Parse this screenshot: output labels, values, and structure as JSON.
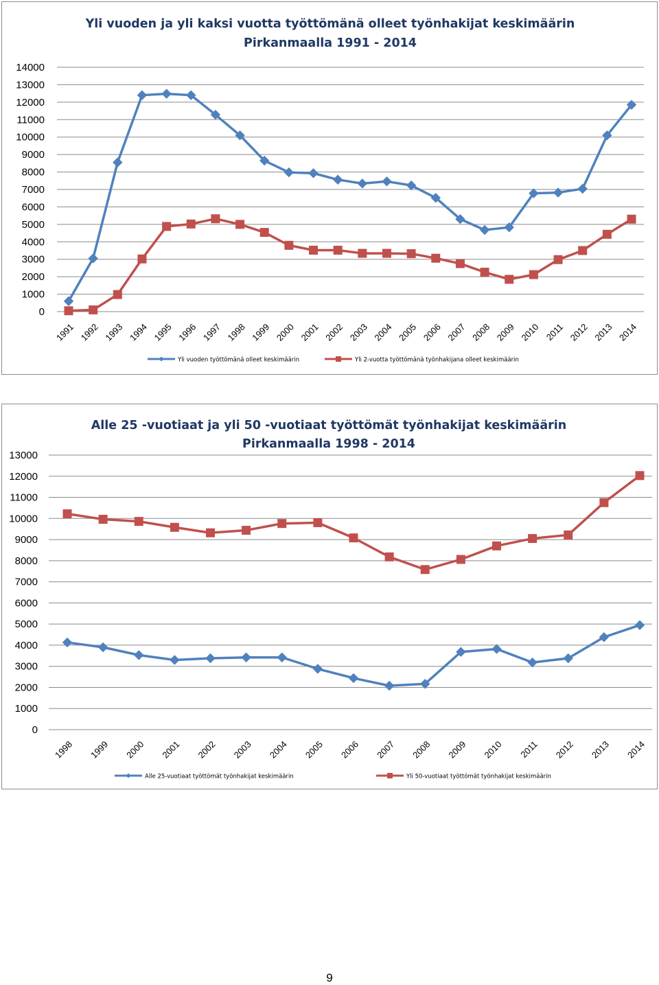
{
  "chart_data": [
    {
      "type": "line",
      "title_lines": [
        "Yli vuoden ja yli kaksi vuotta työttömänä olleet työnhakijat keskimäärin",
        "Pirkanmaalla 1991 - 2014"
      ],
      "categories": [
        "1991",
        "1992",
        "1993",
        "1994",
        "1995",
        "1996",
        "1997",
        "1998",
        "1999",
        "2000",
        "2001",
        "2002",
        "2003",
        "2004",
        "2005",
        "2006",
        "2007",
        "2008",
        "2009",
        "2010",
        "2011",
        "2012",
        "2013",
        "2014"
      ],
      "ylim": [
        0,
        14000
      ],
      "yticks": [
        "0",
        "1000",
        "2000",
        "3000",
        "4000",
        "5000",
        "6000",
        "7000",
        "8000",
        "9000",
        "10000",
        "11000",
        "12000",
        "13000",
        "14000"
      ],
      "grid": true,
      "legend_position": "bottom",
      "series": [
        {
          "name": "Yli vuoden työttömänä olleet keskimäärin",
          "color": "#4f81bd",
          "marker": "diamond",
          "values": [
            600,
            3050,
            8550,
            12400,
            12480,
            12400,
            11280,
            10100,
            8650,
            7980,
            7930,
            7560,
            7340,
            7460,
            7230,
            6520,
            5300,
            4680,
            4830,
            6780,
            6820,
            7040,
            10100,
            11850
          ]
        },
        {
          "name": "Yli 2-vuotta työttömänä työnhakijana olleet keskimäärin",
          "color": "#c0504d",
          "marker": "square",
          "values": [
            50,
            100,
            980,
            3020,
            4880,
            5020,
            5320,
            5000,
            4540,
            3800,
            3520,
            3520,
            3340,
            3340,
            3320,
            3060,
            2750,
            2260,
            1850,
            2120,
            2980,
            3500,
            4430,
            5300
          ]
        }
      ]
    },
    {
      "type": "line",
      "title_lines": [
        "Alle 25 -vuotiaat ja yli 50 -vuotiaat työttömät työnhakijat keskimäärin",
        "Pirkanmaalla 1998 - 2014"
      ],
      "categories": [
        "1998",
        "1999",
        "2000",
        "2001",
        "2002",
        "2003",
        "2004",
        "2005",
        "2006",
        "2007",
        "2008",
        "2009",
        "2010",
        "2011",
        "2012",
        "2013",
        "2014"
      ],
      "ylim": [
        0,
        13000
      ],
      "yticks": [
        "0",
        "1000",
        "2000",
        "3000",
        "4000",
        "5000",
        "6000",
        "7000",
        "8000",
        "9000",
        "10000",
        "11000",
        "12000",
        "13000"
      ],
      "grid": true,
      "legend_position": "bottom",
      "series": [
        {
          "name": "Alle 25-vuotiaat työttömät työnhakijat keskimäärin",
          "color": "#4f81bd",
          "marker": "diamond",
          "values": [
            4130,
            3900,
            3530,
            3300,
            3380,
            3420,
            3420,
            2880,
            2440,
            2080,
            2170,
            3680,
            3820,
            3180,
            3380,
            4380,
            4950
          ]
        },
        {
          "name": "Yli 50-vuotiaat työttömät työnhakijat keskimäärin",
          "color": "#c0504d",
          "marker": "square",
          "values": [
            10220,
            9960,
            9860,
            9580,
            9320,
            9440,
            9760,
            9800,
            9080,
            8180,
            7580,
            8060,
            8700,
            9050,
            9220,
            10750,
            12030
          ]
        }
      ]
    }
  ],
  "page_number": "9"
}
